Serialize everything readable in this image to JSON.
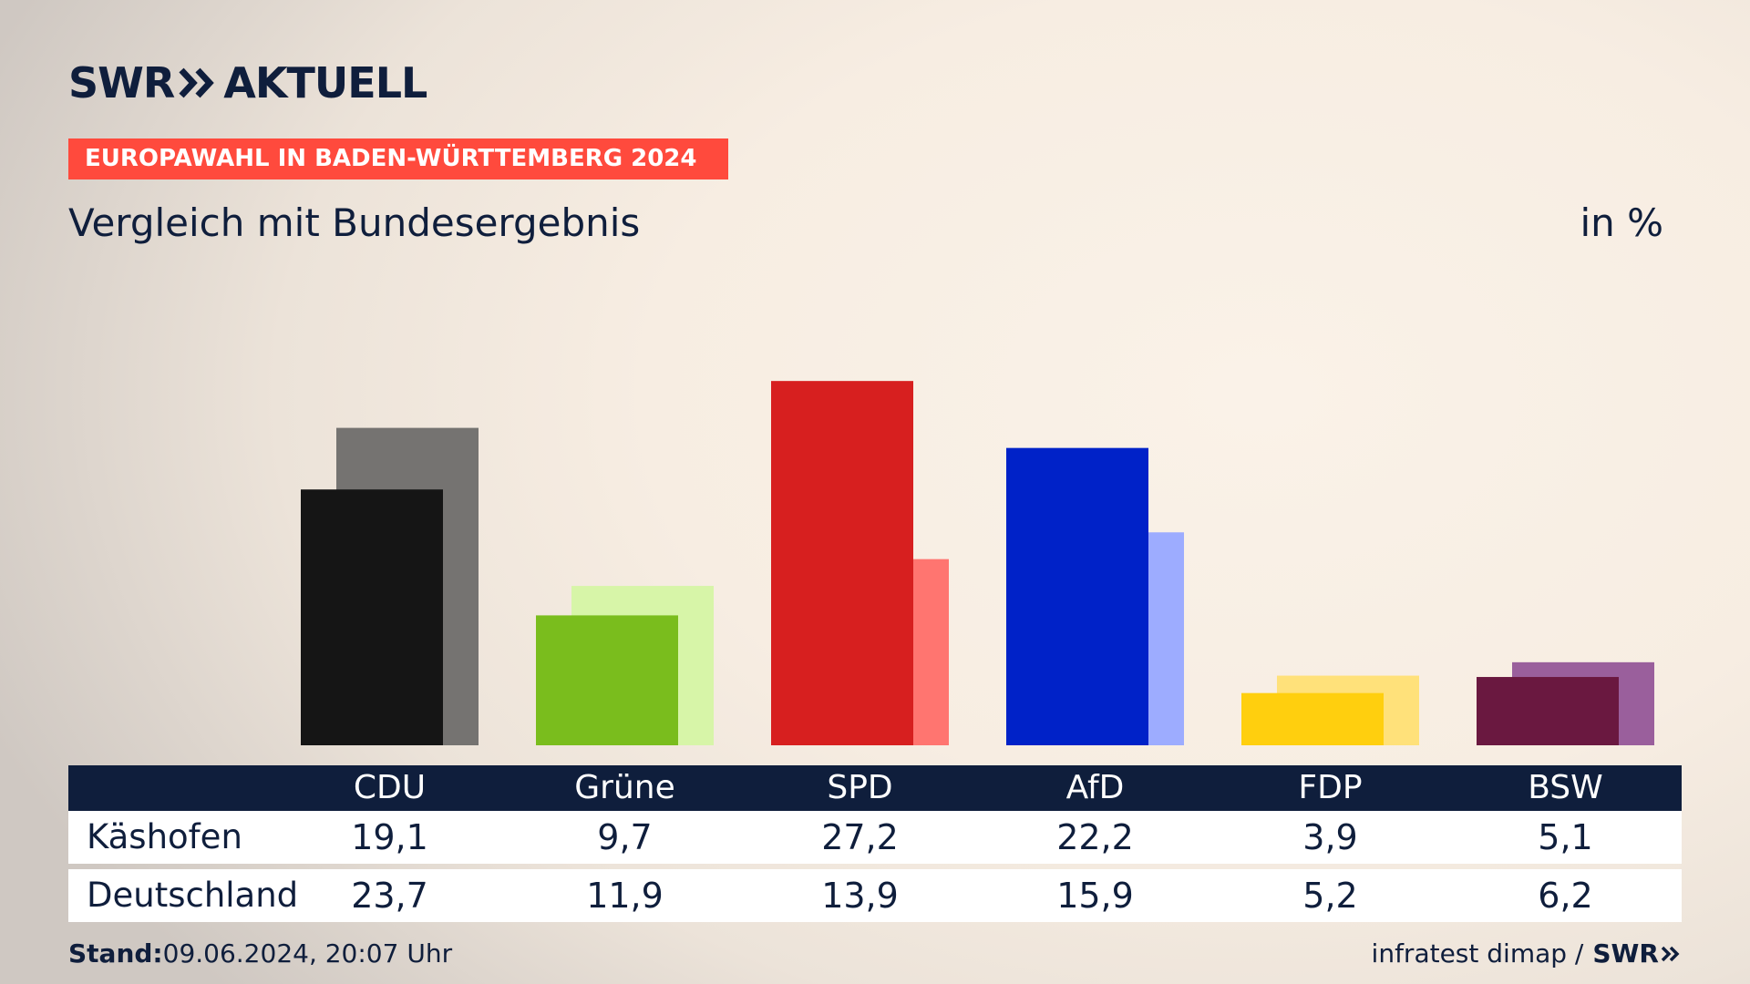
{
  "brand": {
    "logo_left": "SWR",
    "logo_right": "AKTUELL"
  },
  "banner": "EUROPAWAHL IN BADEN-WÜRTTEMBERG 2024",
  "subtitle": "Vergleich mit Bundesergebnis",
  "unit": "in %",
  "footer": {
    "stand_label": "Stand:",
    "stand_value": "09.06.2024, 20:07 Uhr",
    "source": "infratest dimap /",
    "source_brand": "SWR"
  },
  "chart_data": {
    "type": "bar",
    "categories": [
      "CDU",
      "Grüne",
      "SPD",
      "AfD",
      "FDP",
      "BSW"
    ],
    "series": [
      {
        "name": "Käshofen",
        "values": [
          19.1,
          9.7,
          27.2,
          22.2,
          3.9,
          5.1
        ],
        "labels": [
          "19,1",
          "9,7",
          "27,2",
          "22,2",
          "3,9",
          "5,1"
        ]
      },
      {
        "name": "Deutschland",
        "values": [
          23.7,
          11.9,
          13.9,
          15.9,
          5.2,
          6.2
        ],
        "labels": [
          "23,7",
          "11,9",
          "13,9",
          "15,9",
          "5,2",
          "6,2"
        ]
      }
    ],
    "colors_front": [
      "#151515",
      "#7abd1d",
      "#d71f1f",
      "#0022c8",
      "#ffcf0e",
      "#6a1840"
    ],
    "colors_back": [
      "#757371",
      "#d7f5a8",
      "#ff7570",
      "#9dacff",
      "#ffe17a",
      "#9a5f9c"
    ],
    "ylim": [
      0,
      28
    ]
  }
}
